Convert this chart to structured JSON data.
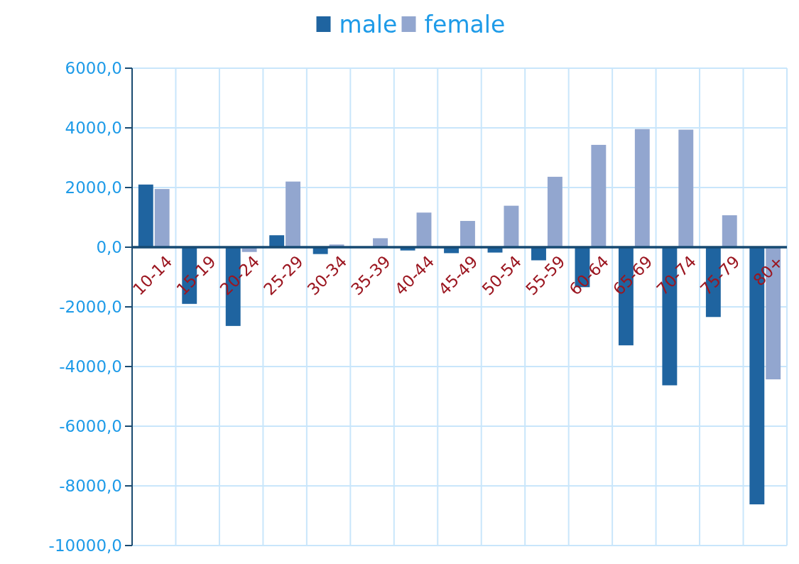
{
  "chart_data": {
    "type": "bar",
    "categories": [
      "10-14",
      "15-19",
      "20-24",
      "25-29",
      "30-34",
      "35-39",
      "40-44",
      "45-49",
      "50-54",
      "55-59",
      "60-64",
      "65-69",
      "70-74",
      "75-79",
      "80+"
    ],
    "series": [
      {
        "name": "male",
        "color": "#1f64a0",
        "values": [
          2100,
          -1900,
          -2640,
          400,
          -230,
          0,
          -110,
          -200,
          -180,
          -440,
          -1340,
          -3290,
          -4630,
          -2340,
          -8620
        ]
      },
      {
        "name": "female",
        "color": "#92a6cf",
        "values": [
          1950,
          0,
          -160,
          2200,
          90,
          300,
          1160,
          880,
          1390,
          2360,
          3430,
          3960,
          3940,
          1070,
          -4430
        ]
      }
    ],
    "ylim": [
      -10000,
      6000
    ],
    "yticks": [
      {
        "value": 6000,
        "label": "6000,0"
      },
      {
        "value": 4000,
        "label": "4000,0"
      },
      {
        "value": 2000,
        "label": "2000,0"
      },
      {
        "value": 0,
        "label": "0,0"
      },
      {
        "value": -2000,
        "label": "-2000,0"
      },
      {
        "value": -4000,
        "label": "-4000,0"
      },
      {
        "value": -6000,
        "label": "-6000,0"
      },
      {
        "value": -8000,
        "label": "-8000,0"
      },
      {
        "value": -10000,
        "label": "-10000,0"
      }
    ],
    "grid": true,
    "legend": "top"
  }
}
